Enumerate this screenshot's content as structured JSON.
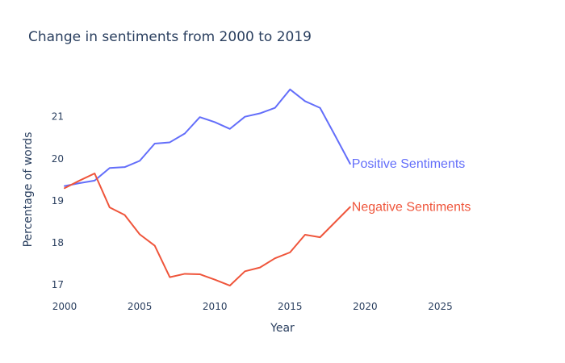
{
  "chart_data": {
    "type": "line",
    "title": "Change in sentiments from 2000 to 2019",
    "xlabel": "Year",
    "ylabel": "Percentage of words",
    "xlim": [
      2000,
      2029
    ],
    "ylim": [
      16.75,
      22.05
    ],
    "x_ticks": [
      "2000",
      "2005",
      "2010",
      "2015",
      "2020",
      "2025"
    ],
    "y_ticks": [
      "17",
      "18",
      "19",
      "20",
      "21"
    ],
    "grid": false,
    "legend": "none",
    "x": [
      2000,
      2001,
      2002,
      2003,
      2004,
      2005,
      2006,
      2007,
      2008,
      2009,
      2010,
      2011,
      2012,
      2013,
      2014,
      2015,
      2016,
      2017,
      2018,
      2019
    ],
    "series": [
      {
        "name": "Positive Sentiments",
        "color": "#636efa",
        "values": [
          19.35,
          19.42,
          19.48,
          19.78,
          19.8,
          19.95,
          20.36,
          20.39,
          20.6,
          20.99,
          20.87,
          20.71,
          21.0,
          21.08,
          21.21,
          21.65,
          21.37,
          21.21,
          20.55,
          19.88
        ]
      },
      {
        "name": "Negative Sentiments",
        "color": "#ef553b",
        "values": [
          19.3,
          19.48,
          19.65,
          18.84,
          18.66,
          18.2,
          17.93,
          17.18,
          17.26,
          17.25,
          17.12,
          16.98,
          17.32,
          17.41,
          17.63,
          17.77,
          18.19,
          18.13,
          18.49,
          18.85
        ]
      }
    ]
  }
}
